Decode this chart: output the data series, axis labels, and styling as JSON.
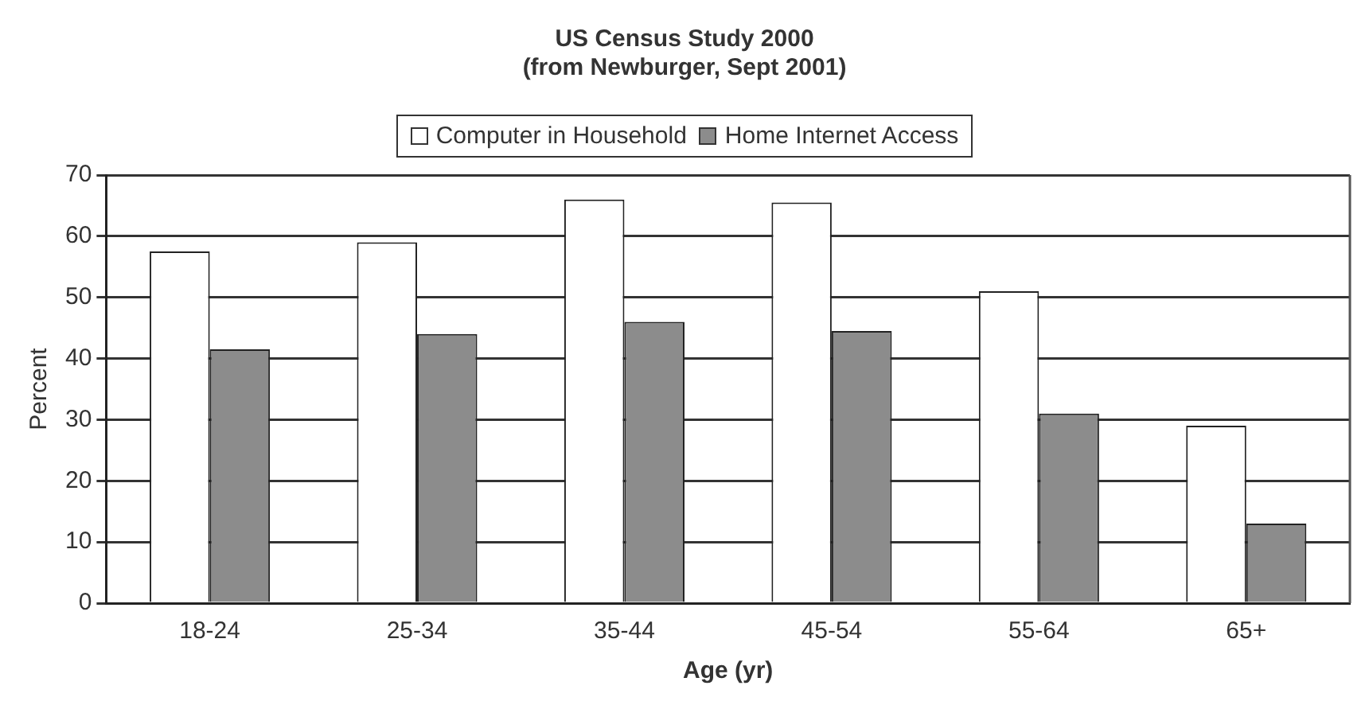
{
  "chart_data": {
    "type": "bar",
    "title": "US Census Study 2000",
    "subtitle": "(from Newburger, Sept 2001)",
    "xlabel": "Age (yr)",
    "ylabel": "Percent",
    "categories": [
      "18-24",
      "25-34",
      "35-44",
      "45-54",
      "55-64",
      "65+"
    ],
    "series": [
      {
        "name": "Computer in Household",
        "color": "#ffffff",
        "values": [
          57.5,
          59,
          66,
          65.5,
          51,
          29
        ]
      },
      {
        "name": "Home Internet Access",
        "color": "#8c8c8c",
        "values": [
          41.5,
          44,
          46,
          44.5,
          31,
          13
        ]
      }
    ],
    "ylim": [
      0,
      70
    ],
    "yticks": [
      0,
      10,
      20,
      30,
      40,
      50,
      60,
      70
    ],
    "grid": "y",
    "legend": "top"
  }
}
